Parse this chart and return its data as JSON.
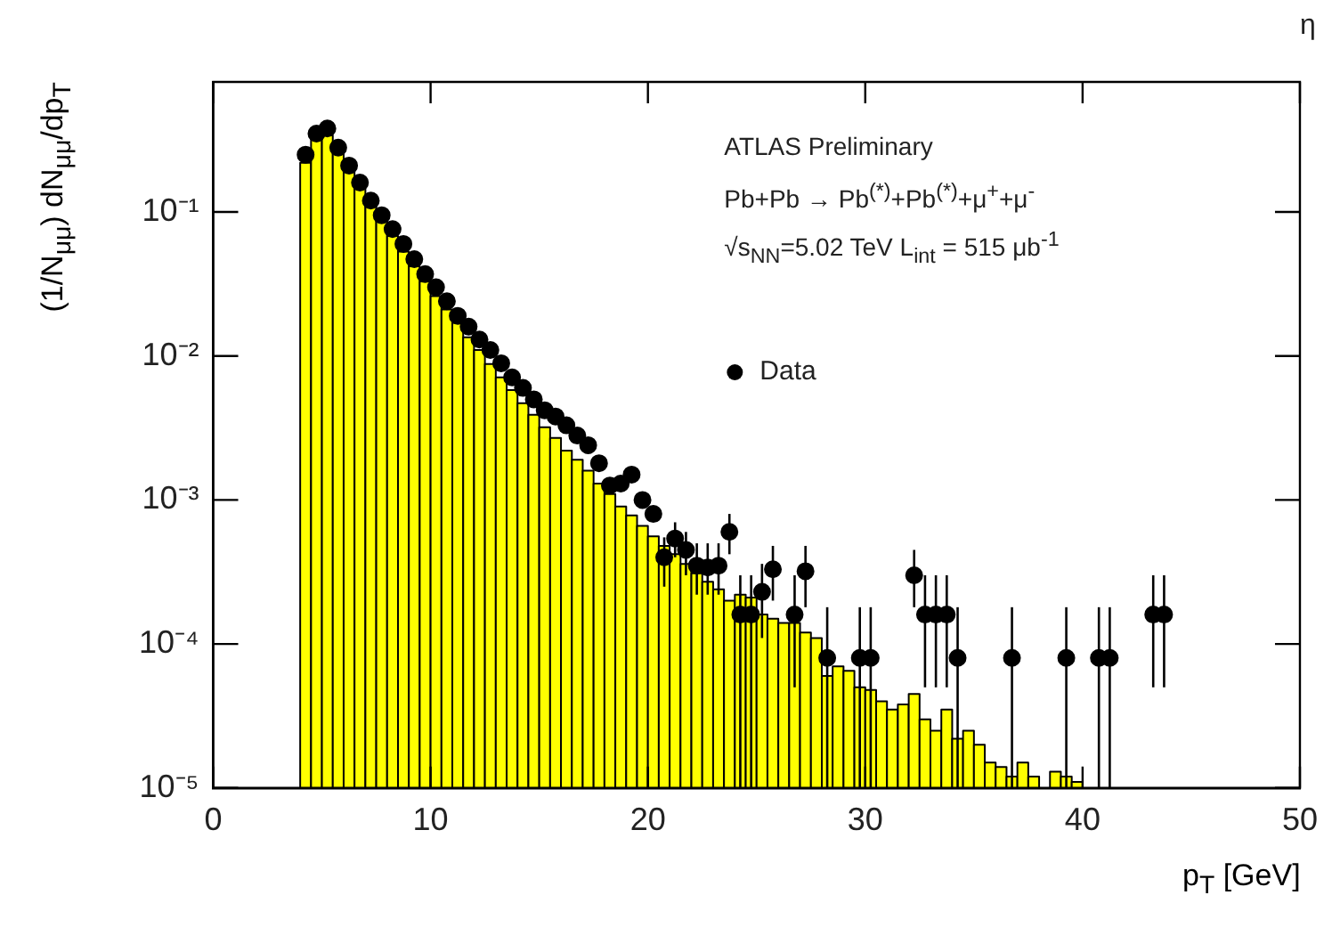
{
  "chart_data": {
    "type": "histogram",
    "xlabel": "p$_{T}$ [GeV]",
    "ylabel": "(1/N$_{μμ}$) dN$_{μμ}$/dp$_{T}$",
    "annotations": [
      "ATLAS Preliminary",
      "Pb+Pb → Pb$^{(*)}$+Pb$^{(*)}$+μ$^{+}$+μ$^{-}$",
      "√s$_{NN}$=5.02 TeV  L$_{int}$ = 515 μb$^{-1}$",
      "η"
    ],
    "xlim": [
      0,
      50
    ],
    "xticks": [
      0,
      10,
      20,
      30,
      40,
      50
    ],
    "ylim": [
      1e-05,
      0.8
    ],
    "yticks": [
      {
        "value": 1e-05,
        "label": "10⁻⁵"
      },
      {
        "value": 0.0001,
        "label": "10⁻⁴"
      },
      {
        "value": 0.001,
        "label": "10⁻³"
      },
      {
        "value": 0.01,
        "label": "10⁻²"
      },
      {
        "value": 0.1,
        "label": "10⁻¹"
      }
    ],
    "log": "y",
    "grid": false,
    "legend": "top right",
    "marker": "circle",
    "series": [
      {
        "type": "histogram",
        "color": "#ffff00",
        "bins": [
          4,
          4.5,
          5,
          5.5,
          6,
          6.5,
          7,
          7.5,
          8,
          8.5,
          9,
          9.5,
          10,
          10.5,
          11,
          11.5,
          12,
          12.5,
          13,
          13.5,
          14,
          14.5,
          15,
          15.5,
          16,
          16.5,
          17,
          17.5,
          18,
          18.5,
          19,
          19.5,
          20,
          20.5,
          21,
          21.5,
          22,
          22.5,
          23,
          23.5,
          24,
          24.5,
          25,
          25.5,
          26,
          26.5,
          27,
          27.5,
          28,
          28.5,
          29,
          29.5,
          30,
          30.5,
          31,
          31.5,
          32,
          32.5,
          33,
          33.5,
          34,
          34.5,
          35,
          35.5,
          36,
          36.5,
          37,
          37.5,
          38,
          38.5,
          39,
          39.5,
          40
        ],
        "values": [
          0.22,
          0.33,
          0.34,
          0.26,
          0.19,
          0.145,
          0.11,
          0.087,
          0.068,
          0.053,
          0.042,
          0.033,
          0.026,
          0.021,
          0.017,
          0.0135,
          0.011,
          0.0088,
          0.0071,
          0.0058,
          0.0047,
          0.0039,
          0.0032,
          0.0027,
          0.0022,
          0.0019,
          0.0016,
          0.0013,
          0.0011,
          0.0009,
          0.00078,
          0.00066,
          0.00056,
          0.00048,
          0.00042,
          0.00036,
          0.00031,
          0.00027,
          0.00024,
          0.0002,
          0.00022,
          0.00021,
          0.00016,
          0.00015,
          0.00014,
          0.00014,
          0.00012,
          0.00011,
          6e-05,
          7e-05,
          6.5e-05,
          5e-05,
          4.8e-05,
          4e-05,
          3.5e-05,
          3.8e-05,
          4.5e-05,
          3e-05,
          2.5e-05,
          3.5e-05,
          2.2e-05,
          2.5e-05,
          2e-05,
          1.5e-05,
          1.4e-05,
          1.2e-05,
          1.5e-05,
          1.2e-05,
          null,
          1.3e-05,
          1.2e-05,
          1.1e-05
        ]
      },
      {
        "type": "scatter",
        "name": "Data",
        "color": "#000000",
        "x": [
          4.25,
          4.75,
          5.25,
          5.75,
          6.25,
          6.75,
          7.25,
          7.75,
          8.25,
          8.75,
          9.25,
          9.75,
          10.25,
          10.75,
          11.25,
          11.75,
          12.25,
          12.75,
          13.25,
          13.75,
          14.25,
          14.75,
          15.25,
          15.75,
          16.25,
          16.75,
          17.25,
          17.75,
          18.25,
          18.75,
          19.25,
          19.75,
          20.25,
          20.75,
          21.25,
          21.75,
          22.25,
          22.75,
          23.25,
          23.75,
          24.25,
          24.75,
          25.25,
          25.75,
          26.75,
          27.25,
          28.25,
          29.75,
          30.25,
          32.25,
          32.75,
          33.25,
          33.75,
          34.25,
          36.75,
          39.25,
          40.75,
          41.25,
          43.25,
          43.75
        ],
        "values": [
          0.25,
          0.35,
          0.38,
          0.28,
          0.21,
          0.16,
          0.12,
          0.095,
          0.076,
          0.06,
          0.047,
          0.037,
          0.03,
          0.024,
          0.019,
          0.016,
          0.013,
          0.011,
          0.0089,
          0.0071,
          0.006,
          0.005,
          0.0042,
          0.0038,
          0.0033,
          0.0028,
          0.0024,
          0.0018,
          0.00126,
          0.0013,
          0.0015,
          0.001,
          0.0008,
          0.0004,
          0.00054,
          0.00045,
          0.00035,
          0.00034,
          0.00035,
          0.0006,
          0.00016,
          0.00016,
          0.00023,
          0.00033,
          0.00016,
          0.00032,
          8e-05,
          8e-05,
          8e-05,
          0.0003,
          0.00016,
          0.00016,
          0.00016,
          8e-05,
          8e-05,
          8e-05,
          8e-05,
          8e-05,
          0.00016,
          0.00016
        ],
        "errors": [
          null,
          null,
          null,
          null,
          null,
          null,
          null,
          null,
          null,
          null,
          null,
          null,
          null,
          null,
          null,
          null,
          null,
          null,
          null,
          null,
          null,
          null,
          null,
          null,
          null,
          null,
          null,
          null,
          null,
          null,
          null,
          null,
          null,
          [
            0.00025,
            0.00055
          ],
          [
            0.0004,
            0.0007
          ],
          [
            0.0003,
            0.0006
          ],
          [
            0.00022,
            0.0005
          ],
          [
            0.00022,
            0.0005
          ],
          [
            0.00022,
            0.0005
          ],
          [
            0.00042,
            0.0008
          ],
          [
            1e-05,
            0.0003
          ],
          [
            1e-05,
            0.0003
          ],
          [
            0.00011,
            0.00036
          ],
          [
            0.0002,
            0.00048
          ],
          [
            5e-05,
            0.0003
          ],
          [
            0.00018,
            0.00048
          ],
          [
            1e-05,
            0.00018
          ],
          [
            1e-05,
            0.00018
          ],
          [
            1e-05,
            0.00018
          ],
          [
            0.00018,
            0.00045
          ],
          [
            5e-05,
            0.0003
          ],
          [
            5e-05,
            0.0003
          ],
          [
            5e-05,
            0.0003
          ],
          [
            1e-05,
            0.00018
          ],
          [
            1e-05,
            0.00018
          ],
          [
            1e-05,
            0.00018
          ],
          [
            1e-05,
            0.00018
          ],
          [
            1e-05,
            0.00018
          ],
          [
            5e-05,
            0.0003
          ],
          [
            5e-05,
            0.0003
          ]
        ]
      }
    ]
  }
}
